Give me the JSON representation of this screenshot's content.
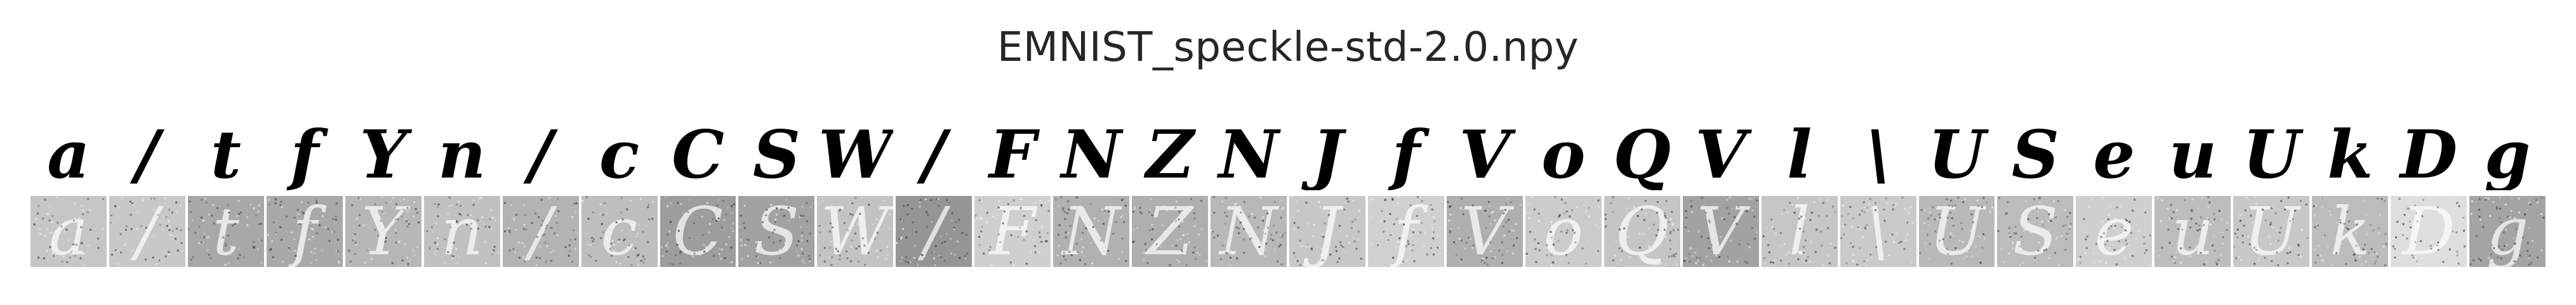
{
  "title": "EMNIST_speckle-std-2.0.npy",
  "clean_samples": [
    "a",
    "/",
    "t",
    "f",
    "Y",
    "n",
    "/",
    "c",
    "C",
    "S",
    "W",
    "/",
    "F",
    "N",
    "Z",
    "N",
    "J",
    "f",
    "V",
    "o",
    "Q",
    "V",
    "l",
    "\\",
    "U",
    "S",
    "e",
    "u",
    "U",
    "k",
    "D",
    "g"
  ],
  "noisy_samples": [
    "a",
    "/",
    "t",
    "f",
    "Y",
    "n",
    "/",
    "c",
    "C",
    "S",
    "W",
    "/",
    "F",
    "N",
    "Z",
    "N",
    "J",
    "f",
    "V",
    "o",
    "Q",
    "V",
    "l",
    "\\",
    "U",
    "S",
    "e",
    "u",
    "U",
    "k",
    "D",
    "g"
  ],
  "noisy_tile_colors": [
    "#c6c6c6",
    "#c8c8c8",
    "#a8a8a8",
    "#a9a9a9",
    "#b7b7b7",
    "#c1c1c1",
    "#b3b3b3",
    "#bebebe",
    "#9d9d9d",
    "#a2a2a2",
    "#c3c3c3",
    "#959595",
    "#cfcfcf",
    "#b1b1b1",
    "#afafaf",
    "#b8b8b8",
    "#c7c7c7",
    "#d0d0d0",
    "#afafaf",
    "#cccccc",
    "#c5c5c5",
    "#a2a2a2",
    "#c6c6c6",
    "#cacaca",
    "#b9b9b9",
    "#bcbcbc",
    "#cfcfcf",
    "#bdbdbd",
    "#c8c8c8",
    "#bcbcbc",
    "#dedede",
    "#a4a4a4"
  ]
}
